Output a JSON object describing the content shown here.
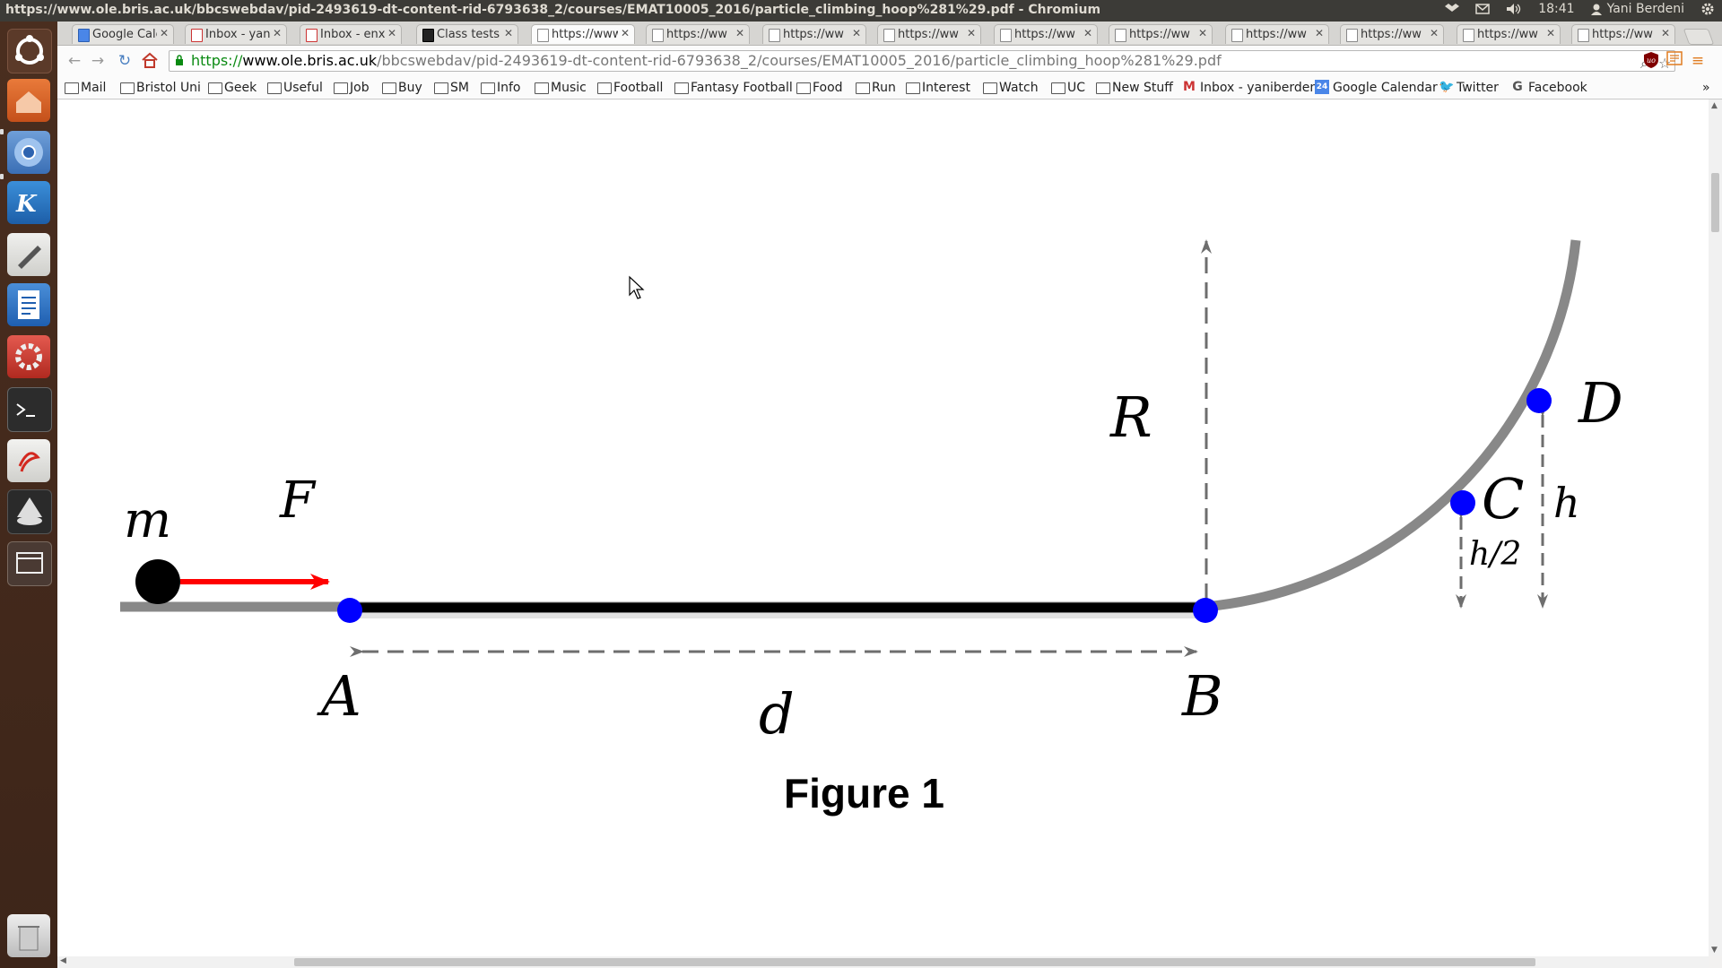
{
  "window": {
    "title": "https://www.ole.bris.ac.uk/bbcswebdav/pid-2493619-dt-content-rid-6793638_2/courses/EMAT10005_2016/particle_climbing_hoop%281%29.pdf - Chromium"
  },
  "panel": {
    "time": "18:41",
    "user": "Yani Berdeni"
  },
  "tabs": [
    {
      "label": "Google Cale",
      "favicon": "calendar-icon"
    },
    {
      "label": "Inbox - yanil",
      "favicon": "gmail-icon"
    },
    {
      "label": "Inbox - enxy",
      "favicon": "gmail-icon"
    },
    {
      "label": "Class tests :",
      "favicon": "blackboard-icon"
    },
    {
      "label": "https://www",
      "favicon": "page-icon",
      "active": true
    },
    {
      "label": "https://ww",
      "favicon": "page-icon"
    },
    {
      "label": "https://ww",
      "favicon": "page-icon"
    },
    {
      "label": "https://ww",
      "favicon": "page-icon"
    },
    {
      "label": "https://ww",
      "favicon": "page-icon"
    },
    {
      "label": "https://ww",
      "favicon": "page-icon"
    },
    {
      "label": "https://ww",
      "favicon": "page-icon"
    },
    {
      "label": "https://ww",
      "favicon": "page-icon"
    },
    {
      "label": "https://ww",
      "favicon": "page-icon"
    },
    {
      "label": "https://ww",
      "favicon": "page-icon"
    }
  ],
  "address": {
    "scheme": "https://",
    "host": "www.ole.bris.ac.uk",
    "path": "/bbcswebdav/pid-2493619-dt-content-rid-6793638_2/courses/EMAT10005_2016/particle_climbing_hoop%281%29.pdf"
  },
  "bookmarks": [
    {
      "label": "Mail",
      "icon": "folder-icon"
    },
    {
      "label": "Bristol Uni",
      "icon": "folder-icon"
    },
    {
      "label": "Geek",
      "icon": "folder-icon"
    },
    {
      "label": "Useful",
      "icon": "folder-icon"
    },
    {
      "label": "Job",
      "icon": "folder-icon"
    },
    {
      "label": "Buy",
      "icon": "folder-icon"
    },
    {
      "label": "SM",
      "icon": "folder-icon"
    },
    {
      "label": "Info",
      "icon": "folder-icon"
    },
    {
      "label": "Music",
      "icon": "folder-icon"
    },
    {
      "label": "Football",
      "icon": "folder-icon"
    },
    {
      "label": "Fantasy Football",
      "icon": "folder-icon"
    },
    {
      "label": "Food",
      "icon": "folder-icon"
    },
    {
      "label": "Run",
      "icon": "folder-icon"
    },
    {
      "label": "Interest",
      "icon": "folder-icon"
    },
    {
      "label": "Watch",
      "icon": "folder-icon"
    },
    {
      "label": "UC",
      "icon": "folder-icon"
    },
    {
      "label": "New Stuff",
      "icon": "folder-icon"
    },
    {
      "label": "Inbox - yaniberden",
      "icon": "gmail-icon"
    },
    {
      "label": "Google Calendar",
      "icon": "calendar-icon"
    },
    {
      "label": "Twitter",
      "icon": "twitter-icon"
    },
    {
      "label": "Facebook",
      "icon": "google-icon"
    }
  ],
  "figure": {
    "labels": {
      "m": "m",
      "F": "F",
      "A": "A",
      "B": "B",
      "C": "C",
      "D": "D",
      "R": "R",
      "d": "d",
      "h": "h",
      "h2": "h/2"
    },
    "caption": "Figure 1"
  },
  "colors": {
    "point": "#0000ff",
    "force_arrow": "#ff0000",
    "track": "#888888",
    "segment": "#000000"
  }
}
